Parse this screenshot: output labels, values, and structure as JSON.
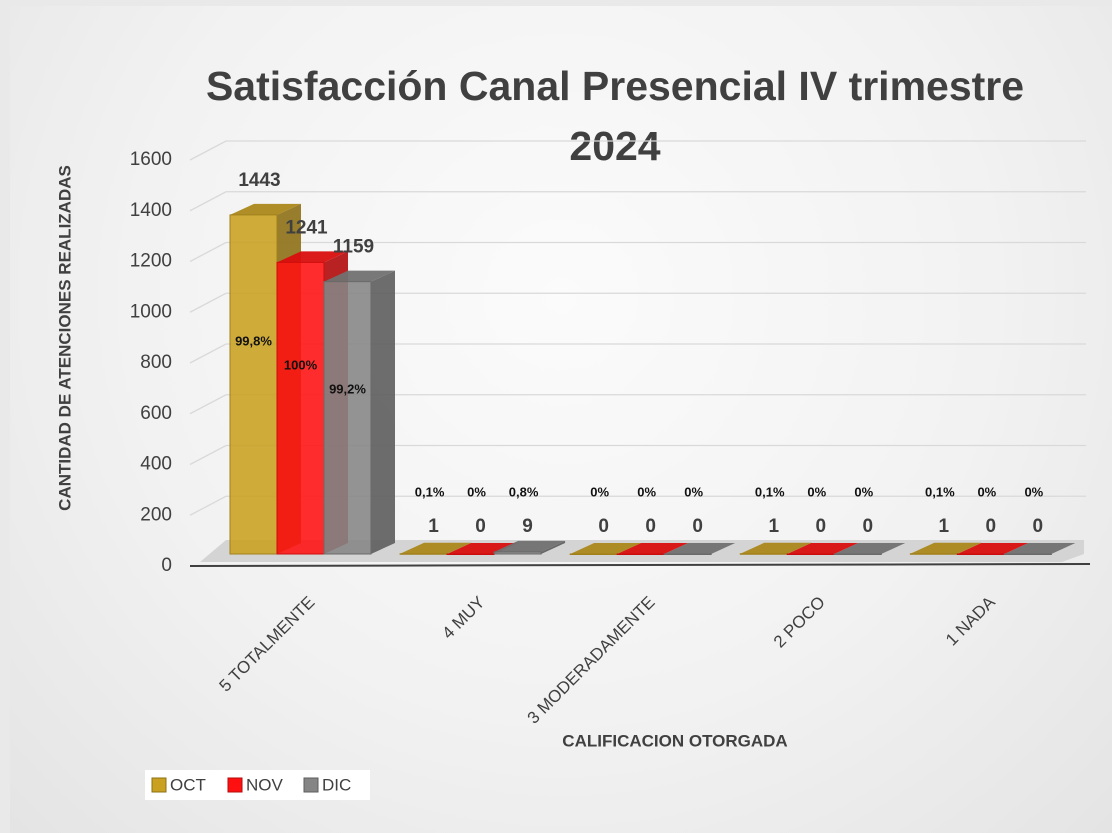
{
  "chart_data": {
    "type": "bar3d",
    "title": "Satisfacción Canal Presencial IV trimestre 2024",
    "ylabel": "CANTIDAD DE ATENCIONES REALIZADAS",
    "xlabel": "CALIFICACION OTORGADA",
    "categories": [
      "5 TOTALMENTE",
      "4 MUY",
      "3 MODERADAMENTE",
      "2 POCO",
      "1 NADA"
    ],
    "series": [
      {
        "name": "OCT",
        "color": "#c9a020",
        "values": [
          1443,
          1,
          0,
          1,
          1
        ],
        "percent_labels": [
          "99,8%",
          "0,1%",
          "0%",
          "0,1%",
          "0,1%"
        ]
      },
      {
        "name": "NOV",
        "color": "#ff1010",
        "values": [
          1241,
          0,
          0,
          0,
          0
        ],
        "percent_labels": [
          "100%",
          "0%",
          "0%",
          "0%",
          "0%"
        ]
      },
      {
        "name": "DIC",
        "color": "#858585",
        "values": [
          1159,
          9,
          0,
          0,
          0
        ],
        "percent_labels": [
          "99,2%",
          "0,8%",
          "0%",
          "0%",
          "0%"
        ]
      }
    ],
    "ylim": [
      0,
      1600
    ],
    "yticks": [
      0,
      200,
      400,
      600,
      800,
      1000,
      1200,
      1400,
      1600
    ],
    "grid": true,
    "legend": "bottom-left"
  }
}
